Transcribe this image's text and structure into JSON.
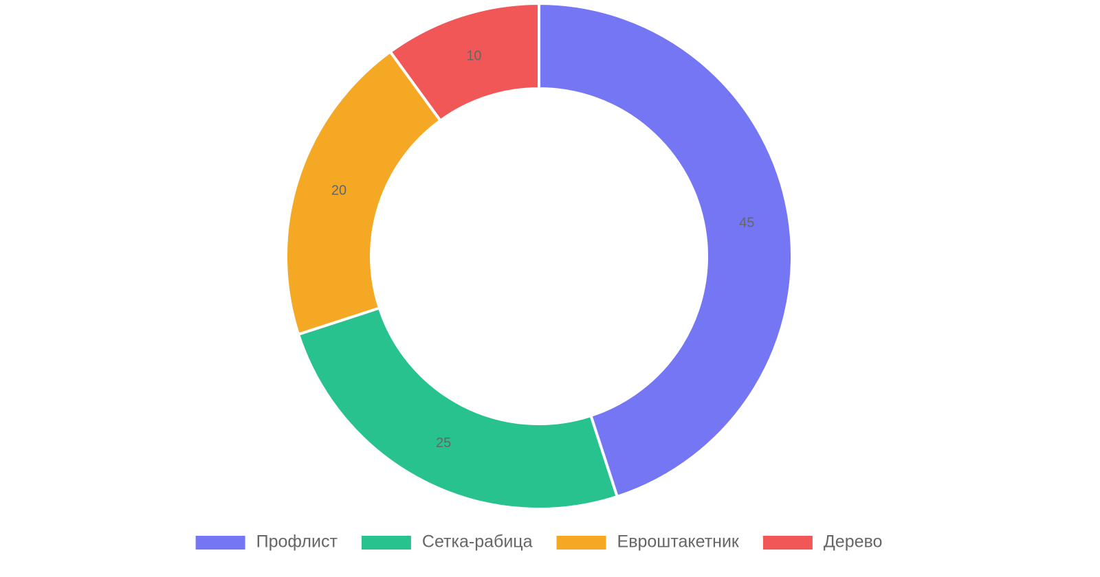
{
  "chart_data": {
    "type": "doughnut",
    "categories": [
      "Профлист",
      "Сетка-рабица",
      "Евроштакетник",
      "Дерево"
    ],
    "values": [
      45,
      25,
      20,
      10
    ],
    "colors": [
      "#7476f3",
      "#28c28e",
      "#f5a823",
      "#f15757"
    ],
    "legend": "bottom"
  }
}
